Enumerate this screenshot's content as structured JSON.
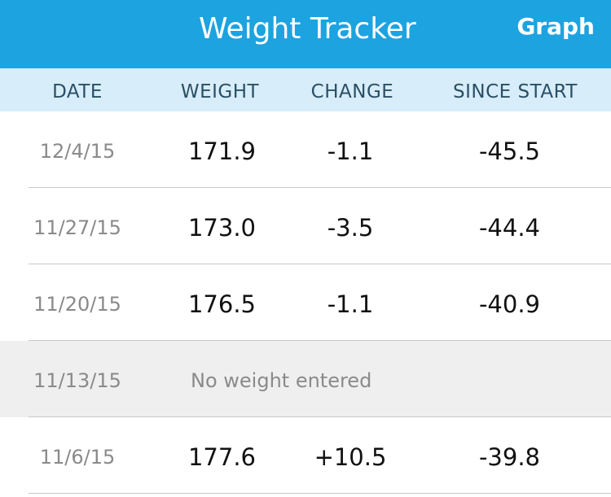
{
  "header": {
    "title": "Weight Tracker",
    "graph_label": "Graph",
    "bar_color": "#1ca3e0"
  },
  "columns": {
    "date": "DATE",
    "weight": "WEIGHT",
    "change": "CHANGE",
    "since_start": "SINCE START"
  },
  "entries": [
    {
      "date": "12/4/15",
      "weight": "171.9",
      "change": "-1.1",
      "since_start": "-45.5"
    },
    {
      "date": "11/27/15",
      "weight": "173.0",
      "change": "-3.5",
      "since_start": "-44.4"
    },
    {
      "date": "11/20/15",
      "weight": "176.5",
      "change": "-1.1",
      "since_start": "-40.9"
    },
    {
      "date": "11/13/15",
      "note": "No weight entered"
    },
    {
      "date": "11/6/15",
      "weight": "177.6",
      "change": "+10.5",
      "since_start": "-39.8"
    }
  ]
}
